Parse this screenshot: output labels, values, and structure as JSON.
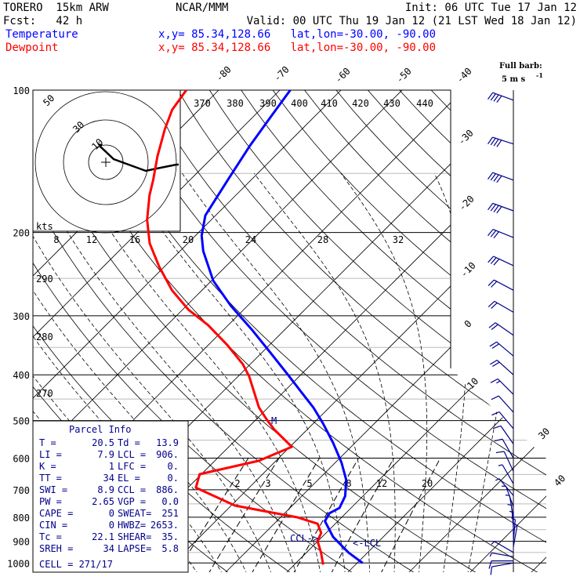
{
  "header": {
    "model": "TORERO  15km ARW",
    "center": "NCAR/MMM",
    "init": "Init: 06 UTC Tue 17 Jan 12",
    "fcst": "Fcst:   42 h",
    "valid": "Valid: 00 UTC Thu 19 Jan 12 (21 LST Wed 18 Jan 12)",
    "temp_label": "Temperature",
    "temp_loc": "x,y= 85.34,128.66   lat,lon=-30.00, -90.00",
    "dew_label": "Dewpoint",
    "dew_loc": "x,y= 85.34,128.66   lat,lon=-30.00, -90.00"
  },
  "colors": {
    "temperature": "#0000ff",
    "dewpoint": "#ff0000",
    "text_blue": "#00008b"
  },
  "legend": {
    "barb_line1": "Full barb:",
    "barb_line2": "5 m s",
    "barb_exp": "-1"
  },
  "parcel": {
    "title": "Parcel Info",
    "rows": [
      [
        "T  =",
        "20.5",
        "Td =",
        "13.9"
      ],
      [
        "LI =",
        "7.9",
        "LCL =",
        "906."
      ],
      [
        "K  =",
        "1",
        "LFC =",
        "0."
      ],
      [
        "TT =",
        "34",
        "EL  =",
        "0."
      ],
      [
        "SWI =",
        "8.9",
        "CCL =",
        "886."
      ],
      [
        "PW =",
        "2.65",
        "VGP =",
        "0.0"
      ],
      [
        "CAPE =",
        "0",
        "SWEAT=",
        "251"
      ],
      [
        "CIN =",
        "0",
        "HWBZ=",
        "2653."
      ],
      [
        "Tc =",
        "22.1",
        "SHEAR=",
        "35."
      ],
      [
        "SREH =",
        "34",
        "LAPSE=",
        "5.8"
      ]
    ],
    "cell": "CELL = 271/17"
  },
  "annotations": {
    "ccl": "CCL->",
    "lcl": "<-LCL",
    "m": "M",
    "kts": "kts"
  },
  "chart_data": {
    "type": "line",
    "title": "Skew-T log-P sounding",
    "pressure_levels": [
      100,
      200,
      300,
      400,
      500,
      600,
      700,
      800,
      900,
      1000
    ],
    "pressure_labels": [
      "100",
      "200",
      "300",
      "400",
      "500",
      "600",
      "700",
      "800",
      "900",
      "1000"
    ],
    "isotherm_labels_top": [
      "-80",
      "-70",
      "-60",
      "-50",
      "-40"
    ],
    "isotherm_labels_right": [
      "-30",
      "-20",
      "-10",
      "0",
      "10",
      "30",
      "40"
    ],
    "theta_labels_top": [
      "370",
      "380",
      "390",
      "400",
      "410",
      "420",
      "430",
      "440"
    ],
    "theta_labels_left": [
      "290",
      "280",
      "270"
    ],
    "mixing_ratio_labels": [
      "2",
      "3",
      "5",
      "8",
      "12",
      "20"
    ],
    "scale_labels": [
      "8",
      "12",
      "16",
      "20",
      "24",
      "28",
      "32"
    ],
    "hodograph_rings": [
      "50",
      "30",
      "10"
    ],
    "series": [
      {
        "name": "Temperature",
        "points": [
          [
            1000,
            20.9
          ],
          [
            951,
            16.9
          ],
          [
            881,
            11.8
          ],
          [
            816,
            7.9
          ],
          [
            785,
            7.3
          ],
          [
            765,
            8.1
          ],
          [
            722,
            7.1
          ],
          [
            667,
            4.6
          ],
          [
            613,
            1.0
          ],
          [
            557,
            -3.6
          ],
          [
            506,
            -8.5
          ],
          [
            469,
            -12.6
          ],
          [
            435,
            -17.1
          ],
          [
            400,
            -22.1
          ],
          [
            359,
            -28.6
          ],
          [
            320,
            -35.6
          ],
          [
            286,
            -42.7
          ],
          [
            253,
            -49.7
          ],
          [
            219,
            -56.2
          ],
          [
            203,
            -59.0
          ],
          [
            184,
            -61.7
          ],
          [
            155,
            -63.8
          ],
          [
            131,
            -65.8
          ],
          [
            114,
            -67.1
          ],
          [
            100,
            -68.3
          ]
        ]
      },
      {
        "name": "Dewpoint",
        "points": [
          [
            1008,
            14.7
          ],
          [
            951,
            12.4
          ],
          [
            898,
            9.9
          ],
          [
            864,
            9.2
          ],
          [
            826,
            7.1
          ],
          [
            801,
            2.8
          ],
          [
            756,
            -9.4
          ],
          [
            693,
            -18.7
          ],
          [
            649,
            -20.3
          ],
          [
            608,
            -12.8
          ],
          [
            568,
            -9.7
          ],
          [
            522,
            -15.4
          ],
          [
            497,
            -18.3
          ],
          [
            469,
            -21.5
          ],
          [
            403,
            -28.2
          ],
          [
            380,
            -31.2
          ],
          [
            346,
            -36.9
          ],
          [
            314,
            -43.3
          ],
          [
            291,
            -49.1
          ],
          [
            265,
            -54.9
          ],
          [
            236,
            -60.9
          ],
          [
            211,
            -66.2
          ],
          [
            188,
            -70.5
          ],
          [
            167,
            -74.1
          ],
          [
            155,
            -76.0
          ],
          [
            138,
            -79.2
          ],
          [
            121,
            -82.4
          ],
          [
            110,
            -84.4
          ],
          [
            100,
            -85.3
          ]
        ]
      }
    ],
    "wind": [
      [
        105,
        290,
        20
      ],
      [
        130,
        288,
        20
      ],
      [
        155,
        290,
        20
      ],
      [
        180,
        290,
        20
      ],
      [
        205,
        292,
        15
      ],
      [
        235,
        295,
        15
      ],
      [
        265,
        298,
        12
      ],
      [
        295,
        300,
        10
      ],
      [
        330,
        305,
        10
      ],
      [
        365,
        310,
        10
      ],
      [
        400,
        312,
        10
      ],
      [
        440,
        315,
        8
      ],
      [
        480,
        318,
        7
      ],
      [
        520,
        320,
        5
      ],
      [
        560,
        325,
        5
      ],
      [
        600,
        330,
        5
      ],
      [
        640,
        335,
        5
      ],
      [
        680,
        330,
        4
      ],
      [
        720,
        320,
        4
      ],
      [
        760,
        340,
        3
      ],
      [
        800,
        350,
        3
      ],
      [
        840,
        355,
        3
      ],
      [
        870,
        0,
        3
      ],
      [
        900,
        5,
        3
      ],
      [
        925,
        10,
        3
      ],
      [
        950,
        300,
        3
      ],
      [
        970,
        280,
        4
      ],
      [
        990,
        270,
        5
      ],
      [
        1000,
        260,
        5
      ]
    ],
    "hodograph": [
      [
        127,
        186
      ],
      [
        145,
        203
      ],
      [
        186,
        218
      ],
      [
        200,
        215
      ],
      [
        225,
        210
      ],
      [
        228,
        210
      ]
    ]
  }
}
